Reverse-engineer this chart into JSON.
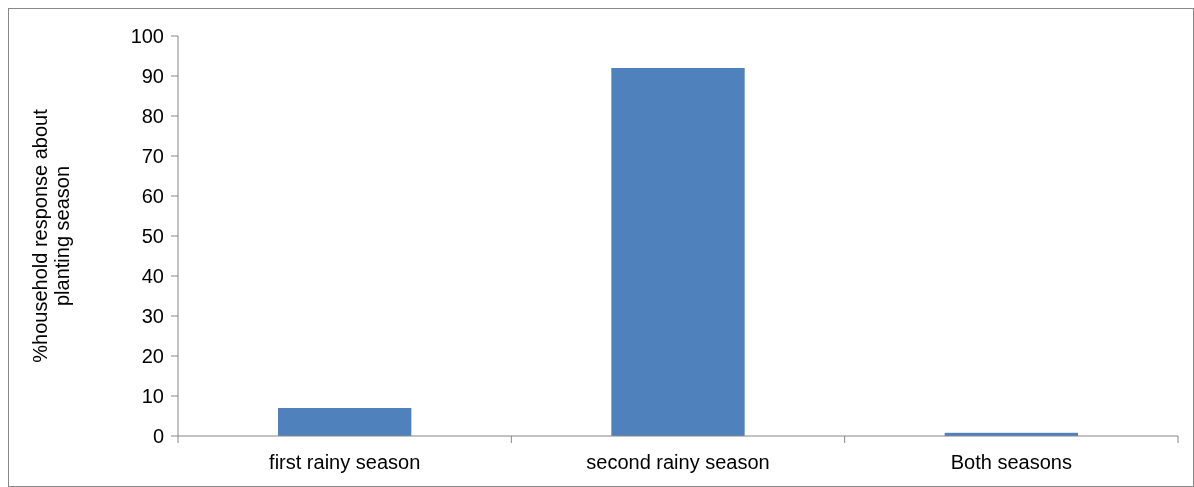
{
  "chart_data": {
    "type": "bar",
    "ylabel": "%household response about planting season",
    "categories": [
      "first rainy season",
      "second rainy season",
      "Both seasons"
    ],
    "values": [
      7,
      92,
      0.8
    ],
    "color": "#4f81bd",
    "ylim": [
      0,
      100
    ],
    "yticks": [
      0,
      10,
      20,
      30,
      40,
      50,
      60,
      70,
      80,
      90,
      100
    ],
    "grid": false
  }
}
